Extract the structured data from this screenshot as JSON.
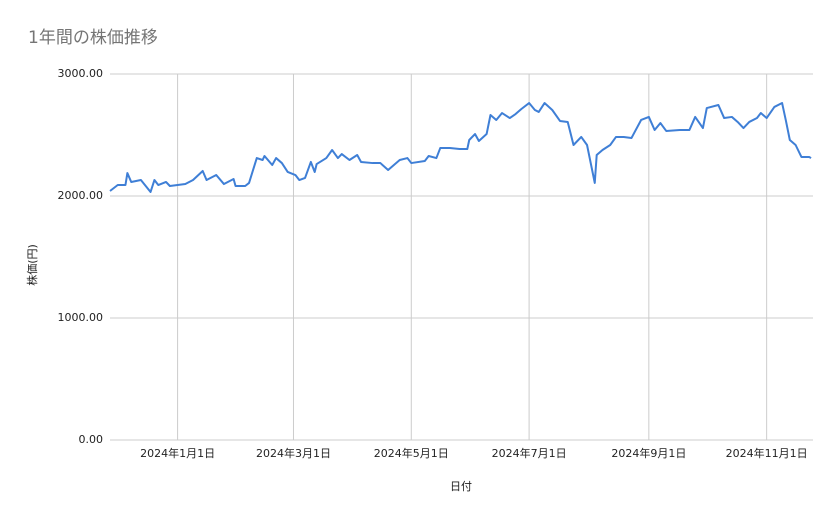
{
  "chart_data": {
    "type": "line",
    "title": "1年間の株価推移",
    "x_label": "日付",
    "y_label": "株価(円)",
    "color": "#3f7fd6",
    "grid": true,
    "x": [
      "2023-11-27",
      "2023-12-01",
      "2023-12-05",
      "2023-12-06",
      "2023-12-08",
      "2023-12-13",
      "2023-12-18",
      "2023-12-20",
      "2023-12-22",
      "2023-12-26",
      "2023-12-28",
      "2024-01-05",
      "2024-01-09",
      "2024-01-14",
      "2024-01-16",
      "2024-01-21",
      "2024-01-25",
      "2024-01-30",
      "2024-01-31",
      "2024-02-05",
      "2024-02-07",
      "2024-02-11",
      "2024-02-14",
      "2024-02-15",
      "2024-02-19",
      "2024-02-21",
      "2024-02-24",
      "2024-02-27",
      "2024-03-02",
      "2024-03-04",
      "2024-03-07",
      "2024-03-10",
      "2024-03-12",
      "2024-03-13",
      "2024-03-18",
      "2024-03-21",
      "2024-03-24",
      "2024-03-26",
      "2024-03-30",
      "2024-04-03",
      "2024-04-05",
      "2024-04-11",
      "2024-04-15",
      "2024-04-19",
      "2024-04-22",
      "2024-04-25",
      "2024-04-29",
      "2024-05-01",
      "2024-05-08",
      "2024-05-10",
      "2024-05-14",
      "2024-05-16",
      "2024-05-21",
      "2024-05-26",
      "2024-05-30",
      "2024-05-31",
      "2024-06-03",
      "2024-06-05",
      "2024-06-09",
      "2024-06-11",
      "2024-06-14",
      "2024-06-17",
      "2024-06-21",
      "2024-06-24",
      "2024-06-27",
      "2024-07-01",
      "2024-07-04",
      "2024-07-06",
      "2024-07-09",
      "2024-07-13",
      "2024-07-17",
      "2024-07-21",
      "2024-07-24",
      "2024-07-28",
      "2024-07-31",
      "2024-08-04",
      "2024-08-05",
      "2024-08-08",
      "2024-08-12",
      "2024-08-15",
      "2024-08-19",
      "2024-08-23",
      "2024-08-28",
      "2024-09-01",
      "2024-09-04",
      "2024-09-07",
      "2024-09-10",
      "2024-09-17",
      "2024-09-22",
      "2024-09-25",
      "2024-09-29",
      "2024-10-01",
      "2024-10-07",
      "2024-10-10",
      "2024-10-14",
      "2024-10-17",
      "2024-10-20",
      "2024-10-23",
      "2024-10-27",
      "2024-10-29",
      "2024-11-01",
      "2024-11-05",
      "2024-11-09",
      "2024-11-11",
      "2024-11-13",
      "2024-11-16",
      "2024-11-19",
      "2024-11-23",
      "2024-11-24"
    ],
    "values": [
      2041,
      2090,
      2090,
      2188,
      2115,
      2131,
      2033,
      2131,
      2090,
      2115,
      2082,
      2098,
      2131,
      2205,
      2131,
      2172,
      2098,
      2139,
      2082,
      2082,
      2107,
      2311,
      2295,
      2328,
      2254,
      2311,
      2270,
      2197,
      2172,
      2131,
      2148,
      2279,
      2197,
      2262,
      2311,
      2377,
      2311,
      2344,
      2295,
      2336,
      2279,
      2270,
      2270,
      2213,
      2254,
      2295,
      2311,
      2270,
      2287,
      2328,
      2311,
      2393,
      2393,
      2385,
      2385,
      2459,
      2508,
      2451,
      2508,
      2664,
      2623,
      2680,
      2639,
      2672,
      2713,
      2762,
      2705,
      2689,
      2762,
      2705,
      2615,
      2607,
      2418,
      2484,
      2418,
      2107,
      2336,
      2377,
      2418,
      2484,
      2484,
      2475,
      2623,
      2648,
      2541,
      2598,
      2533,
      2541,
      2541,
      2648,
      2557,
      2721,
      2746,
      2639,
      2648,
      2607,
      2557,
      2607,
      2639,
      2680,
      2639,
      2730,
      2762,
      2615,
      2459,
      2418,
      2320,
      2320,
      2311
    ],
    "xlim": [
      "2023-11-27",
      "2024-11-25"
    ],
    "xticks": [
      {
        "value": "2024-01-01",
        "label": "2024年1月1日"
      },
      {
        "value": "2024-03-01",
        "label": "2024年3月1日"
      },
      {
        "value": "2024-05-01",
        "label": "2024年5月1日"
      },
      {
        "value": "2024-07-01",
        "label": "2024年7月1日"
      },
      {
        "value": "2024-09-01",
        "label": "2024年9月1日"
      },
      {
        "value": "2024-11-01",
        "label": "2024年11月1日"
      }
    ],
    "ylim": [
      0,
      3000
    ],
    "yticks": [
      {
        "value": 0,
        "label": "0.00"
      },
      {
        "value": 1000,
        "label": "1000.00"
      },
      {
        "value": 2000,
        "label": "2000.00"
      },
      {
        "value": 3000,
        "label": "3000.00"
      }
    ]
  }
}
